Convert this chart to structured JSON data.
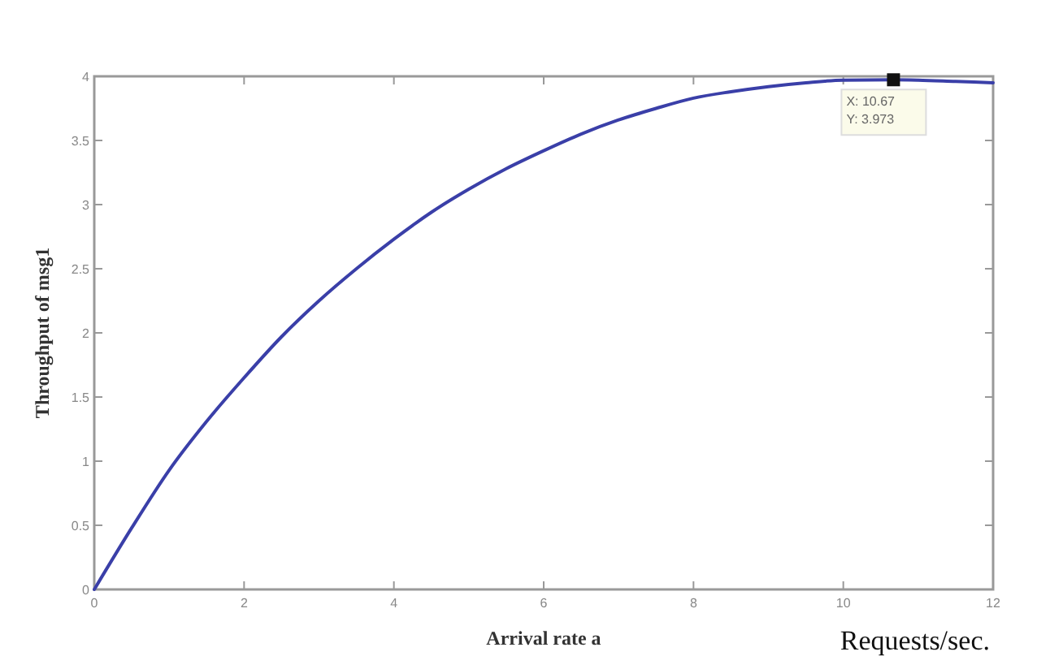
{
  "chart_data": {
    "type": "line",
    "xlabel": "Arrival rate a",
    "ylabel": "Throughput of msg1",
    "x": [
      0,
      0.5,
      1,
      1.5,
      2,
      2.5,
      3,
      3.5,
      4,
      4.5,
      5,
      5.5,
      6,
      6.5,
      7,
      7.5,
      8,
      8.5,
      9,
      9.5,
      10,
      10.67,
      11,
      11.5,
      12
    ],
    "series": [
      {
        "color": "#3a3fa8",
        "values": [
          0,
          0.48,
          0.93,
          1.31,
          1.65,
          1.97,
          2.25,
          2.5,
          2.73,
          2.94,
          3.12,
          3.28,
          3.42,
          3.55,
          3.66,
          3.75,
          3.83,
          3.88,
          3.92,
          3.95,
          3.97,
          3.973,
          3.97,
          3.96,
          3.95
        ]
      }
    ],
    "xlim": [
      0,
      12
    ],
    "ylim": [
      0,
      4
    ],
    "xticks": [
      0,
      2,
      4,
      6,
      8,
      10,
      12
    ],
    "yticks": [
      0,
      0.5,
      1,
      1.5,
      2,
      2.5,
      3,
      3.5,
      4
    ],
    "grid": false,
    "marker": "none",
    "line_style": "solid",
    "annotations": [
      {
        "text": "X: 10.67\nY: 3.973",
        "x": 10.67,
        "y": 3.973
      },
      "Requests/sec."
    ]
  }
}
